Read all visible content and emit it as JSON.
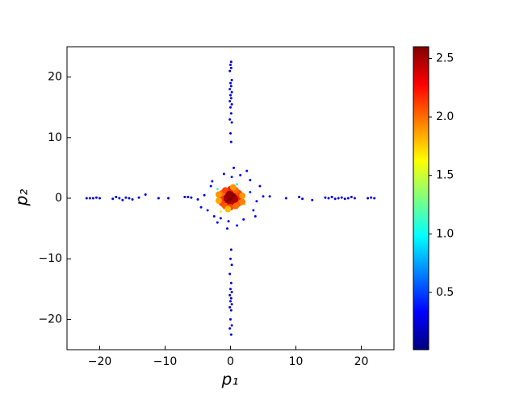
{
  "chart_data": {
    "type": "scatter",
    "xlabel": "p₁",
    "ylabel": "p₂",
    "xlim": [
      -25,
      25
    ],
    "ylim": [
      -25,
      25
    ],
    "xticks": [
      {
        "value": -20,
        "label": "−20"
      },
      {
        "value": -10,
        "label": "−10"
      },
      0,
      10,
      20
    ],
    "yticks": [
      {
        "value": -20,
        "label": "−20"
      },
      {
        "value": -10,
        "label": "−10"
      },
      0,
      10,
      20
    ],
    "x": [
      -22,
      -21.5,
      -21,
      -20.5,
      -20,
      -18,
      -17.5,
      -17,
      -16.5,
      -16,
      -15.5,
      -15,
      -14,
      -13,
      -11,
      -9.5,
      -7,
      -6,
      8.5,
      10.5,
      11,
      12.5,
      14.5,
      15,
      15.5,
      16,
      16.5,
      17,
      17.5,
      18,
      18.5,
      19,
      21,
      21.5,
      22,
      0.1,
      0,
      0.2,
      -0.1,
      0.1,
      0,
      0.2,
      -0.1,
      0.1,
      0,
      0.2,
      -0.1,
      0.1,
      0,
      0.2,
      -0.1,
      0.1,
      0,
      0.1,
      0.1,
      0,
      0.2,
      -0.1,
      0.1,
      0,
      0.2,
      -0.1,
      0.1,
      0,
      0.2,
      -0.1,
      0.1,
      0,
      0.2,
      -0.1,
      0.1,
      -3,
      -2.5,
      3,
      3.5,
      -4,
      4,
      -1,
      1,
      2.5,
      -2,
      5,
      -5,
      0.5,
      -0.5,
      2,
      -3.5,
      3,
      -2.8,
      1.5,
      -1.5,
      4.5,
      -4.5,
      0.2,
      -0.3,
      3.8,
      6,
      -6.5,
      -2,
      2.2,
      1,
      -1.5,
      0,
      0.5,
      -0.5,
      0.5,
      -0.5,
      1,
      -1,
      0,
      0,
      1,
      -1,
      1,
      -1,
      1.5,
      -1.5,
      0,
      0,
      1.3,
      -1.3,
      1.3,
      -1.3,
      0.8,
      -0.8,
      0.8,
      -0.8,
      1.8,
      -1.8,
      0.4,
      -0.4,
      1.8,
      -1.8,
      0.3,
      -0.2,
      0.7
    ],
    "values": [
      0,
      0,
      0,
      0.1,
      0,
      -0.1,
      0.2,
      0,
      -0.3,
      0.1,
      0,
      -0.2,
      0.1,
      0.6,
      0,
      0,
      0.2,
      0.1,
      0,
      0.2,
      -0.1,
      -0.3,
      0.1,
      0,
      0.2,
      -0.1,
      0,
      0.1,
      -0.1,
      0,
      0.2,
      0,
      0,
      0.1,
      0,
      9.3,
      10.7,
      12.5,
      13,
      14,
      15,
      15.5,
      16,
      16.5,
      17,
      17.5,
      18,
      18.5,
      19,
      19.5,
      21,
      21.5,
      22,
      22.5,
      -8.5,
      -10,
      -11,
      -12.5,
      -14,
      -15,
      -15.5,
      -16,
      -16.5,
      -17,
      -17.5,
      -18,
      -18.5,
      -20,
      -21,
      -21.5,
      -22.5,
      2,
      -3,
      3,
      -2,
      0.5,
      -0.5,
      4,
      -4.5,
      4.5,
      -4,
      0.3,
      -0.2,
      5,
      -5,
      -3.5,
      -2,
      1,
      2.8,
      3.8,
      -3.3,
      2,
      -1.5,
      3.5,
      -3.8,
      -3,
      0.3,
      0.2,
      1.5,
      -1,
      2.3,
      -2.2,
      0,
      0.5,
      0.5,
      -0.5,
      -0.5,
      0,
      0,
      1,
      -1,
      1,
      1,
      -1,
      -1,
      0,
      0,
      1.5,
      -1.5,
      0.8,
      0.8,
      -0.8,
      -0.8,
      1.3,
      1.3,
      -1.3,
      -1.3,
      0.4,
      -0.4,
      1.8,
      -1.8,
      -0.6,
      0.6,
      0.2,
      0.7,
      -0.2
    ],
    "color_values": [
      0.2,
      0.25,
      0.2,
      0.3,
      0.2,
      0.25,
      0.2,
      0.3,
      0.2,
      0.25,
      0.2,
      0.3,
      0.2,
      0.25,
      0.2,
      0.3,
      0.2,
      0.25,
      0.2,
      0.25,
      0.2,
      0.3,
      0.2,
      0.25,
      0.2,
      0.3,
      0.2,
      0.25,
      0.2,
      0.3,
      0.2,
      0.25,
      0.2,
      0.3,
      0.2,
      0.2,
      0.25,
      0.2,
      0.3,
      0.2,
      0.25,
      0.2,
      0.3,
      0.2,
      0.25,
      0.2,
      0.3,
      0.2,
      0.25,
      0.2,
      0.3,
      0.2,
      0.25,
      0.2,
      0.2,
      0.25,
      0.2,
      0.3,
      0.2,
      0.25,
      0.2,
      0.3,
      0.2,
      0.25,
      0.2,
      0.3,
      0.2,
      0.25,
      0.2,
      0.3,
      0.2,
      0.3,
      0.35,
      0.3,
      0.4,
      0.3,
      0.35,
      0.3,
      0.4,
      0.3,
      0.35,
      0.25,
      0.3,
      0.3,
      0.35,
      0.3,
      0.4,
      0.45,
      0.3,
      0.35,
      0.3,
      0.3,
      0.35,
      0.4,
      0.3,
      0.35,
      0.25,
      0.25,
      1.2,
      1.4,
      1.1,
      1.5,
      2.6,
      2.6,
      2.55,
      2.5,
      2.6,
      2.45,
      2.5,
      2.5,
      2.45,
      2.3,
      2.35,
      2.3,
      2.4,
      2.2,
      2.15,
      2.2,
      2.1,
      2.1,
      2.0,
      2.05,
      2.1,
      2.0,
      2.1,
      2.0,
      2.05,
      1.9,
      1.85,
      1.9,
      1.8,
      1.95,
      1.9,
      2.6,
      2.55,
      2.5
    ],
    "colorbar": {
      "clim": [
        0.01,
        2.6
      ],
      "ticks": [
        0.5,
        {
          "value": 1.0,
          "label": "1.0"
        },
        1.5,
        {
          "value": 2.0,
          "label": "2.0"
        },
        2.5
      ],
      "colors": [
        "#00007f",
        "#0000ff",
        "#007fff",
        "#00ffff",
        "#7fff7f",
        "#ffff00",
        "#ff7f00",
        "#ff0000",
        "#7f0000"
      ]
    }
  }
}
